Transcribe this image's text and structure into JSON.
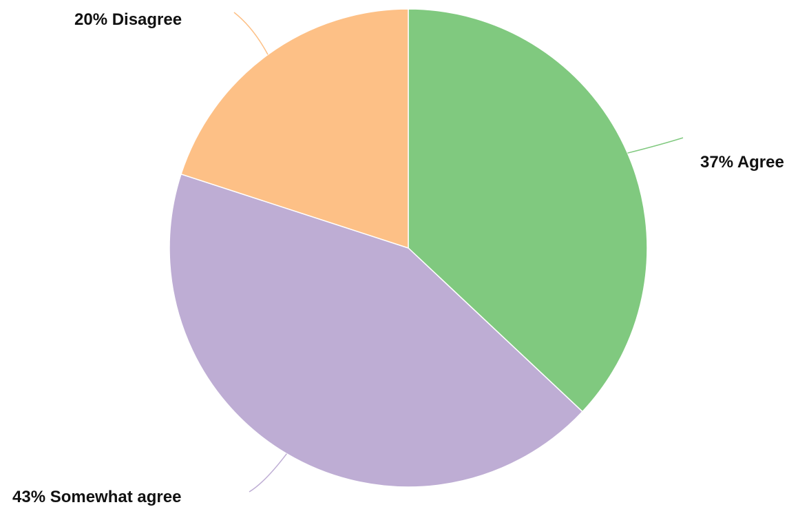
{
  "chart_data": {
    "type": "pie",
    "slices": [
      {
        "category": "Agree",
        "value": 37,
        "label": "37% Agree",
        "color": "#80c97f"
      },
      {
        "category": "Somewhat agree",
        "value": 43,
        "label": "43% Somewhat agree",
        "color": "#beadd4"
      },
      {
        "category": "Disagree",
        "value": 20,
        "label": "20% Disagree",
        "color": "#fdc086"
      }
    ],
    "unit": "%",
    "start_angle": "12 o'clock",
    "direction": "clockwise",
    "legend": "none"
  }
}
